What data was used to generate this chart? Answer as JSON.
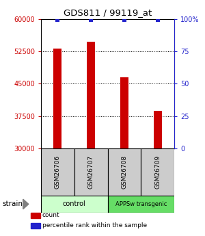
{
  "title": "GDS811 / 99119_at",
  "samples": [
    "GSM26706",
    "GSM26707",
    "GSM26708",
    "GSM26709"
  ],
  "counts": [
    53200,
    54700,
    46500,
    38700
  ],
  "percentiles": [
    99,
    99,
    99,
    99
  ],
  "ylim_left": [
    30000,
    60000
  ],
  "ylim_right": [
    0,
    100
  ],
  "yticks_left": [
    30000,
    37500,
    45000,
    52500,
    60000
  ],
  "ytick_labels_left": [
    "30000",
    "37500",
    "45000",
    "52500",
    "60000"
  ],
  "yticks_right": [
    0,
    25,
    50,
    75,
    100
  ],
  "ytick_labels_right": [
    "0",
    "25",
    "50",
    "75",
    "100%"
  ],
  "bar_color": "#cc0000",
  "dot_color": "#2222cc",
  "groups": [
    {
      "label": "control",
      "samples": [
        0,
        1
      ],
      "color": "#ccffcc"
    },
    {
      "label": "APPSw transgenic",
      "samples": [
        2,
        3
      ],
      "color": "#66dd66"
    }
  ],
  "strain_label": "strain",
  "legend_items": [
    {
      "color": "#cc0000",
      "label": "count"
    },
    {
      "color": "#2222cc",
      "label": "percentile rank within the sample"
    }
  ],
  "left_tick_color": "#cc0000",
  "right_tick_color": "#2222cc",
  "bar_width": 0.25,
  "dot_size": 25,
  "cell_bg": "#cccccc",
  "fig_bg": "#ffffff"
}
